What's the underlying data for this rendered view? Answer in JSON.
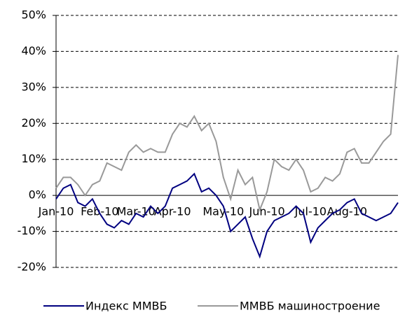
{
  "chart_data": {
    "type": "line",
    "categories": [
      "Jan-10",
      null,
      null,
      null,
      null,
      null,
      "Feb-10",
      null,
      null,
      null,
      null,
      "Mar-10",
      null,
      null,
      null,
      null,
      "Apr-10",
      null,
      null,
      null,
      null,
      null,
      null,
      "May-10",
      null,
      null,
      null,
      null,
      null,
      "Jun-10",
      null,
      null,
      null,
      null,
      null,
      "Jul-10",
      null,
      null,
      null,
      null,
      "Aug-10",
      null,
      null,
      null,
      null,
      null,
      null,
      null
    ],
    "series": [
      {
        "name": "Индекс ММВБ",
        "color": "#000080",
        "values": [
          -1,
          2,
          3,
          -2,
          -3,
          -1,
          -5,
          -8,
          -9,
          -7,
          -8,
          -5,
          -6,
          -3,
          -5,
          -3,
          2,
          3,
          4,
          6,
          1,
          2,
          0,
          -3,
          -10,
          -8,
          -6,
          -12,
          -17,
          -10,
          -7,
          -6,
          -5,
          -3,
          -5,
          -13,
          -9,
          -7,
          -5,
          -4,
          -2,
          -1,
          -5,
          -6,
          -7,
          -6,
          -5,
          -2
        ]
      },
      {
        "name": "ММВБ машиностроение",
        "color": "#999999",
        "values": [
          2,
          5,
          5,
          3,
          0,
          3,
          4,
          9,
          8,
          7,
          12,
          14,
          12,
          13,
          12,
          12,
          17,
          20,
          19,
          22,
          18,
          20,
          15,
          5,
          -1,
          7,
          3,
          5,
          -4,
          1,
          10,
          8,
          7,
          10,
          7,
          1,
          2,
          5,
          4,
          6,
          12,
          13,
          9,
          9,
          12,
          15,
          17,
          39
        ]
      }
    ],
    "ylim": [
      -20,
      50
    ],
    "yticks": [
      {
        "value": -20,
        "label": "-20%"
      },
      {
        "value": -10,
        "label": "-10%"
      },
      {
        "value": 0,
        "label": "0%"
      },
      {
        "value": 10,
        "label": "10%"
      },
      {
        "value": 20,
        "label": "20%"
      },
      {
        "value": 30,
        "label": "30%"
      },
      {
        "value": 40,
        "label": "40%"
      },
      {
        "value": 50,
        "label": "50%"
      }
    ],
    "grid": true,
    "legend": "bottom"
  }
}
